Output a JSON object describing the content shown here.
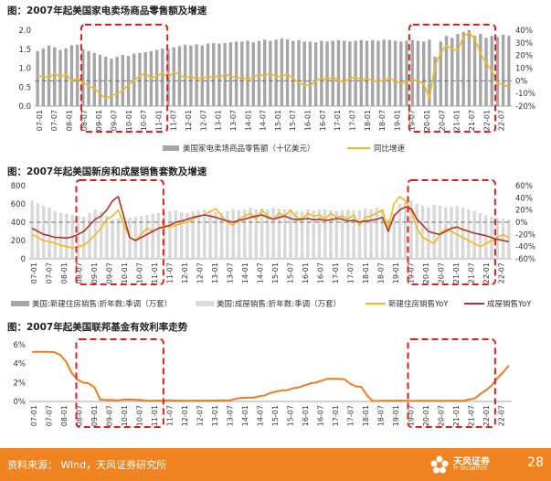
{
  "panel_titles": {
    "p1": "图：2007年起美国家电卖场商品零售额及增速",
    "p2": "图：2007年起美国新房和成屋销售套数及增速",
    "p3": "图：2007年起美国联邦基金有效利率走势"
  },
  "footer": {
    "source": "资料来源：  Wind，天风证券研究所",
    "logo_name": "天风证券",
    "logo_sub": "TF SECURITIES",
    "page_number": "28"
  },
  "colors": {
    "bar_dark": "#a6a6a6",
    "bar_light": "#d9d9d9",
    "yoy_yellow": "#f4b91e",
    "yoy_darkred": "#b0352a",
    "rate_orange": "#ee7d22",
    "highlight_red": "#e01f1f",
    "zero_line": "#777777"
  },
  "chart_data": [
    {
      "type": "bar",
      "title": "图：2007年起美国家电卖场商品零售额及增速",
      "x_tick_labels": [
        "07-01",
        "07-07",
        "08-01",
        "08-07",
        "09-01",
        "09-07",
        "10-01",
        "10-07",
        "11-01",
        "11-07",
        "12-01",
        "12-07",
        "13-01",
        "13-07",
        "14-01",
        "14-07",
        "15-01",
        "15-07",
        "16-01",
        "16-07",
        "17-01",
        "17-07",
        "18-01",
        "18-07",
        "19-01",
        "19-07",
        "20-01",
        "20-07",
        "21-01",
        "21-07",
        "22-01",
        "22-07"
      ],
      "y_left_ticks": [
        "0.0",
        "0.5",
        "1.0",
        "1.5",
        "2.0"
      ],
      "y_left_range": [
        0,
        2.0
      ],
      "y_right_ticks": [
        "40%",
        "30%",
        "20%",
        "10%",
        "0%",
        "-10%",
        "-20%"
      ],
      "y_right_range": [
        -20,
        40
      ],
      "series": [
        {
          "name": "美国家电卖场商品零售额（十亿美元）",
          "axis": "left",
          "kind": "bar",
          "color": "#a6a6a6",
          "values": [
            1.45,
            1.52,
            1.6,
            1.55,
            1.48,
            1.52,
            1.6,
            1.62,
            1.5,
            1.45,
            1.4,
            1.35,
            1.3,
            1.25,
            1.3,
            1.35,
            1.32,
            1.38,
            1.4,
            1.42,
            1.45,
            1.48,
            1.52,
            1.5,
            1.55,
            1.58,
            1.62,
            1.6,
            1.63,
            1.6,
            1.65,
            1.66,
            1.65,
            1.66,
            1.68,
            1.7,
            1.7,
            1.72,
            1.68,
            1.72,
            1.75,
            1.72,
            1.75,
            1.78,
            1.76,
            1.72,
            1.74,
            1.7,
            1.7,
            1.68,
            1.72,
            1.7,
            1.72,
            1.74,
            1.72,
            1.7,
            1.72,
            1.74,
            1.72,
            1.74,
            1.72,
            1.75,
            1.74,
            1.72,
            1.7,
            1.72,
            1.74,
            1.72,
            1.7,
            1.75,
            1.3,
            1.7,
            1.85,
            1.8,
            1.9,
            1.95,
            2.0,
            1.85,
            1.9,
            1.8,
            1.85,
            1.82,
            1.88,
            1.85
          ]
        },
        {
          "name": "同比增速",
          "axis": "right",
          "kind": "line",
          "color": "#f4b91e",
          "values": [
            3,
            4,
            2,
            6,
            3,
            5,
            0,
            2,
            -1,
            -4,
            -6,
            -10,
            -14,
            -12,
            -10,
            -8,
            -3,
            0,
            4,
            6,
            2,
            4,
            6,
            3,
            7,
            5,
            2,
            4,
            1,
            3,
            2,
            4,
            3,
            5,
            4,
            2,
            3,
            1,
            3,
            5,
            4,
            6,
            3,
            4,
            5,
            2,
            -2,
            -3,
            -4,
            0,
            2,
            1,
            3,
            0,
            -1,
            2,
            3,
            1,
            2,
            0,
            -1,
            1,
            2,
            0,
            -2,
            -1,
            1,
            0,
            -2,
            -14,
            12,
            22,
            28,
            25,
            24,
            35,
            38,
            33,
            22,
            14,
            8,
            -2,
            -3,
            -5
          ]
        }
      ],
      "highlight_periods": [
        [
          "08-07",
          "11-01"
        ],
        [
          "19-07",
          "22-01"
        ]
      ]
    },
    {
      "type": "bar",
      "title": "图：2007年起美国新房和成屋销售套数及增速",
      "x_tick_labels": [
        "07-01",
        "07-07",
        "08-01",
        "08-07",
        "09-01",
        "09-07",
        "10-01",
        "10-07",
        "11-01",
        "11-07",
        "12-01",
        "12-07",
        "13-01",
        "13-07",
        "14-01",
        "14-07",
        "15-01",
        "15-07",
        "16-01",
        "16-07",
        "17-01",
        "17-07",
        "18-01",
        "18-07",
        "19-01",
        "19-07",
        "20-01",
        "20-07",
        "21-01",
        "21-07",
        "22-01",
        "22-07"
      ],
      "y_left_ticks": [
        "0",
        "200",
        "400",
        "600",
        "800"
      ],
      "y_left_range": [
        0,
        800
      ],
      "y_right_ticks": [
        "60%",
        "40%",
        "20%",
        "0%",
        "-20%",
        "-40%",
        "-60%"
      ],
      "y_right_range": [
        -60,
        60
      ],
      "series": [
        {
          "name": "美国:新建住房销售:折年数:季调（万套）",
          "axis": "left",
          "kind": "bar",
          "color": "#a6a6a6",
          "values": [
            90,
            85,
            80,
            72,
            65,
            60,
            55,
            50,
            45,
            40,
            38,
            38,
            40,
            42,
            40,
            38,
            36,
            32,
            30,
            30,
            30,
            32,
            35,
            36,
            36,
            38,
            40,
            42,
            44,
            46,
            44,
            42,
            43,
            45,
            48,
            50,
            52,
            50,
            54,
            52,
            56,
            58,
            58,
            60,
            62,
            60,
            60,
            64,
            62,
            62,
            66,
            64,
            66,
            68,
            64,
            66,
            64,
            66,
            68,
            68,
            70,
            72,
            62,
            84,
            90,
            96,
            98,
            84,
            78,
            72,
            70,
            76,
            74,
            72,
            70,
            66,
            64,
            62,
            60,
            58,
            56,
            60,
            58,
            56
          ]
        },
        {
          "name": "美国:成屋销售:折年数:季调（万套）",
          "axis": "left",
          "kind": "bar",
          "color": "#d9d9d9",
          "values": [
            640,
            610,
            580,
            560,
            520,
            500,
            490,
            480,
            470,
            460,
            500,
            540,
            520,
            470,
            430,
            440,
            460,
            450,
            460,
            470,
            480,
            490,
            500,
            510,
            520,
            530,
            510,
            500,
            520,
            530,
            540,
            520,
            510,
            500,
            520,
            540,
            530,
            540,
            560,
            540,
            550,
            540,
            560,
            550,
            540,
            530,
            520,
            520,
            540,
            530,
            540,
            540,
            530,
            520,
            530,
            540,
            530,
            530,
            550,
            540,
            560,
            540,
            430,
            500,
            600,
            620,
            640,
            600,
            580,
            560,
            590,
            580,
            560,
            570,
            580,
            560,
            540,
            520,
            500,
            480,
            460,
            450,
            440,
            430
          ]
        },
        {
          "name": "新建住房销售YoY",
          "axis": "right",
          "kind": "line",
          "color": "#f4b91e",
          "values": [
            -20,
            -25,
            -30,
            -32,
            -34,
            -38,
            -40,
            -42,
            -40,
            -38,
            -30,
            -20,
            -10,
            5,
            10,
            20,
            -5,
            -25,
            -30,
            -20,
            -10,
            -15,
            -10,
            -5,
            -8,
            -5,
            -2,
            0,
            5,
            10,
            12,
            18,
            22,
            10,
            0,
            -5,
            5,
            10,
            15,
            5,
            20,
            10,
            5,
            15,
            10,
            20,
            8,
            5,
            15,
            10,
            12,
            5,
            15,
            8,
            10,
            5,
            12,
            -5,
            8,
            10,
            15,
            20,
            -10,
            30,
            42,
            35,
            20,
            -10,
            -25,
            -30,
            -35,
            -20,
            -10,
            -15,
            -20,
            -25,
            -30,
            -35,
            -40,
            -35,
            -30,
            -25,
            -20,
            -25
          ]
        },
        {
          "name": "成屋销售YoY",
          "axis": "right",
          "kind": "line",
          "color": "#b0352a",
          "values": [
            -10,
            -15,
            -20,
            -22,
            -25,
            -25,
            -26,
            -24,
            -20,
            -15,
            -5,
            5,
            10,
            20,
            35,
            42,
            8,
            -25,
            -30,
            -25,
            -20,
            -15,
            -10,
            -8,
            -5,
            0,
            2,
            5,
            8,
            10,
            12,
            10,
            8,
            5,
            2,
            0,
            3,
            5,
            8,
            10,
            12,
            8,
            5,
            8,
            10,
            6,
            4,
            5,
            6,
            4,
            5,
            3,
            4,
            6,
            5,
            2,
            3,
            0,
            2,
            3,
            5,
            8,
            -15,
            10,
            20,
            25,
            22,
            5,
            -5,
            -15,
            -18,
            -20,
            -15,
            -10,
            -8,
            -12,
            -15,
            -18,
            -20,
            -22,
            -25,
            -28,
            -30,
            -32
          ]
        }
      ],
      "highlight_periods": [
        [
          "08-07",
          "11-01"
        ],
        [
          "19-07",
          "22-01"
        ]
      ]
    },
    {
      "type": "line",
      "title": "图：2007年起美国联邦基金有效利率走势",
      "x_tick_labels": [
        "07-01",
        "07-07",
        "08-01",
        "08-07",
        "09-01",
        "09-07",
        "10-01",
        "10-07",
        "11-01",
        "11-07",
        "12-01",
        "12-07",
        "13-01",
        "13-07",
        "14-01",
        "14-07",
        "15-01",
        "15-07",
        "16-01",
        "16-07",
        "17-01",
        "17-07",
        "18-01",
        "18-07",
        "19-01",
        "19-07",
        "20-01",
        "20-07",
        "21-01",
        "21-07",
        "22-01",
        "22-07"
      ],
      "y_left_ticks": [
        "0%",
        "2%",
        "4%",
        "6%"
      ],
      "y_left_range": [
        0,
        6
      ],
      "series": [
        {
          "name": "联邦基金有效利率",
          "axis": "left",
          "kind": "line",
          "color": "#ee7d22",
          "values": [
            5.25,
            5.25,
            5.25,
            5.25,
            5.2,
            4.9,
            4.2,
            3.0,
            2.3,
            2.0,
            1.9,
            1.5,
            0.2,
            0.15,
            0.15,
            0.12,
            0.18,
            0.2,
            0.18,
            0.15,
            0.1,
            0.08,
            0.1,
            0.08,
            0.14,
            0.1,
            0.09,
            0.08,
            0.08,
            0.1,
            0.09,
            0.09,
            0.1,
            0.12,
            0.13,
            0.14,
            0.3,
            0.38,
            0.4,
            0.4,
            0.55,
            0.65,
            0.9,
            1.05,
            1.16,
            1.2,
            1.4,
            1.5,
            1.7,
            1.9,
            2.0,
            2.2,
            2.4,
            2.4,
            2.4,
            2.35,
            1.9,
            1.6,
            1.55,
            0.65,
            0.05,
            0.06,
            0.09,
            0.09,
            0.08,
            0.1,
            0.07,
            0.06,
            0.08,
            0.08,
            0.08,
            0.08,
            0.08,
            0.08,
            0.08,
            0.08,
            0.08,
            0.2,
            0.33,
            0.8,
            1.2,
            1.7,
            2.5,
            3.1,
            3.8
          ]
        }
      ],
      "highlight_periods": [
        [
          "08-07",
          "11-01"
        ],
        [
          "19-07",
          "22-01"
        ]
      ]
    }
  ]
}
